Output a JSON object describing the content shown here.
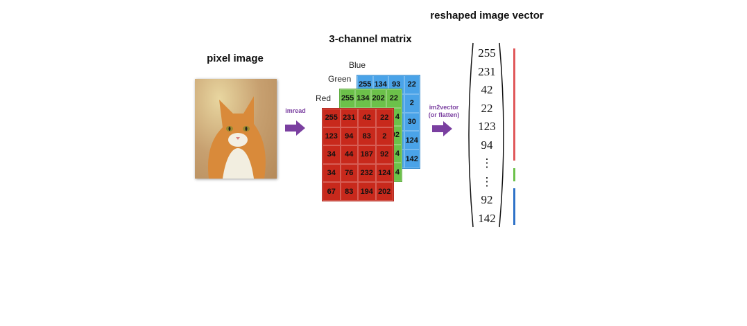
{
  "titles": {
    "pixel": "pixel image",
    "matrix": "3-channel matrix",
    "vector": "reshaped image vector"
  },
  "channels": {
    "red": "Red",
    "green": "Green",
    "blue": "Blue"
  },
  "arrows": {
    "imread": "imread",
    "im2vector": "im2vector\n(or flatten)"
  },
  "colors": {
    "red": "#c8291c",
    "green": "#6cc14a",
    "blue": "#4aa3e8",
    "arrow": "#7a3fa0"
  },
  "blue_grid": [
    [
      "255",
      "134",
      "93",
      "22"
    ],
    [
      "",
      "",
      "",
      "2"
    ],
    [
      "",
      "",
      "",
      "30"
    ],
    [
      "",
      "",
      "",
      "124"
    ],
    [
      "",
      "",
      "",
      "142"
    ]
  ],
  "green_grid": [
    [
      "255",
      "134",
      "202",
      "22"
    ],
    [
      "",
      "",
      "",
      "4"
    ],
    [
      "",
      "",
      "",
      "92"
    ],
    [
      "",
      "",
      "",
      "4"
    ],
    [
      "",
      "",
      "",
      "4"
    ]
  ],
  "red_grid": [
    [
      "255",
      "231",
      "42",
      "22"
    ],
    [
      "123",
      "94",
      "83",
      "2"
    ],
    [
      "34",
      "44",
      "187",
      "92"
    ],
    [
      "34",
      "76",
      "232",
      "124"
    ],
    [
      "67",
      "83",
      "194",
      "202"
    ]
  ],
  "vector": [
    "255",
    "231",
    "42",
    "22",
    "123",
    "94",
    "⋮",
    "⋮",
    "92",
    "142"
  ]
}
